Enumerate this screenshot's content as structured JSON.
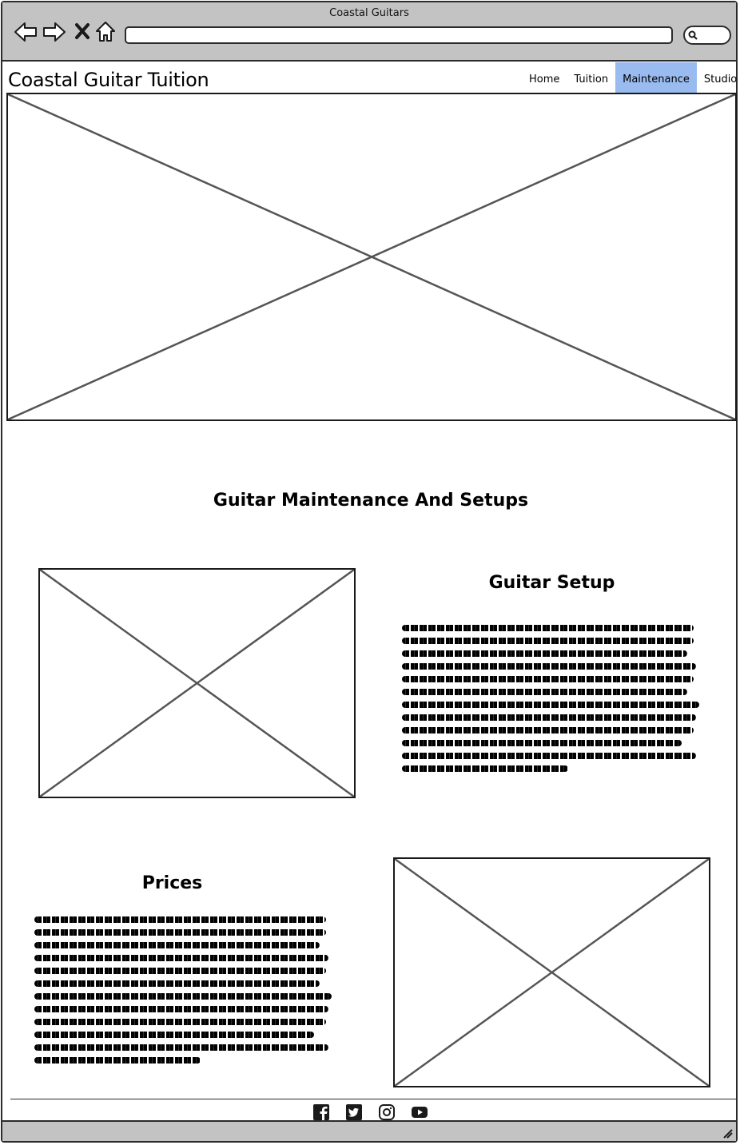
{
  "browser": {
    "title": "Coastal Guitars",
    "icons": [
      "back-icon",
      "forward-icon",
      "close-icon",
      "home-icon",
      "search-icon"
    ]
  },
  "site": {
    "logo": "Coastal Guitar Tuition"
  },
  "nav": {
    "items": [
      {
        "label": "Home",
        "active": false
      },
      {
        "label": "Tuition",
        "active": false
      },
      {
        "label": "Maintenance",
        "active": true
      },
      {
        "label": "Studio",
        "active": false
      }
    ],
    "active_color": "#99bbef"
  },
  "main": {
    "page_heading": "Guitar Maintenance And Setups",
    "setup": {
      "heading": "Guitar Setup"
    },
    "prices": {
      "heading": "Prices"
    }
  },
  "footer": {
    "social_icons": [
      "facebook-icon",
      "twitter-icon",
      "instagram-icon",
      "youtube-icon"
    ]
  }
}
